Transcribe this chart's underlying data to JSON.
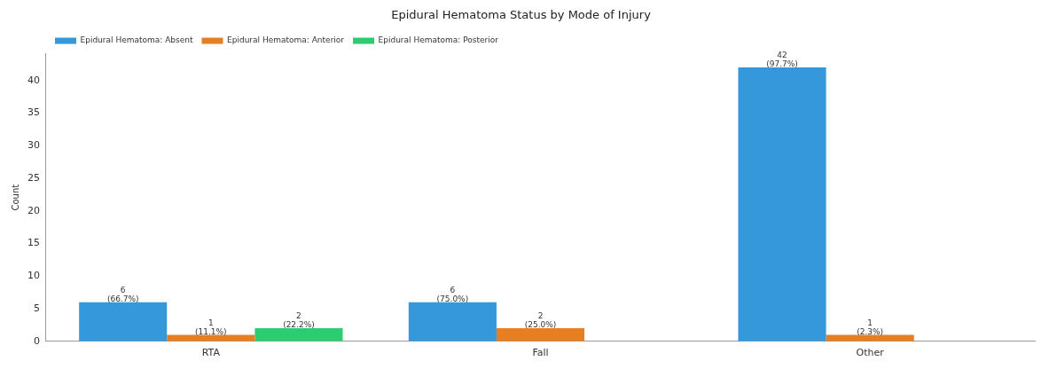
{
  "chart_data": {
    "type": "bar",
    "title": "Epidural Hematoma Status by Mode of Injury",
    "ylabel": "Count",
    "categories": [
      "RTA",
      "Fall",
      "Other"
    ],
    "series": [
      {
        "name": "Epidural Hematoma: Absent",
        "color": "#3498db",
        "values": [
          6,
          6,
          42
        ],
        "value_labels": [
          "6\n(66.7%)",
          "6\n(75.0%)",
          "42\n(97.7%)"
        ]
      },
      {
        "name": "Epidural Hematoma: Anterior",
        "color": "#e67e22",
        "values": [
          1,
          2,
          1
        ],
        "value_labels": [
          "1\n(11.1%)",
          "2\n(25.0%)",
          "1\n(2.3%)"
        ]
      },
      {
        "name": "Epidural Hematoma: Posterior",
        "color": "#2ecc71",
        "values": [
          2,
          null,
          null
        ],
        "value_labels": [
          "2\n(22.2%)",
          null,
          null
        ]
      }
    ],
    "ylim": [
      0,
      44.1
    ],
    "yticks": [
      0,
      5,
      10,
      15,
      20,
      25,
      30,
      35,
      40
    ],
    "grid": false,
    "legend": "top left"
  }
}
